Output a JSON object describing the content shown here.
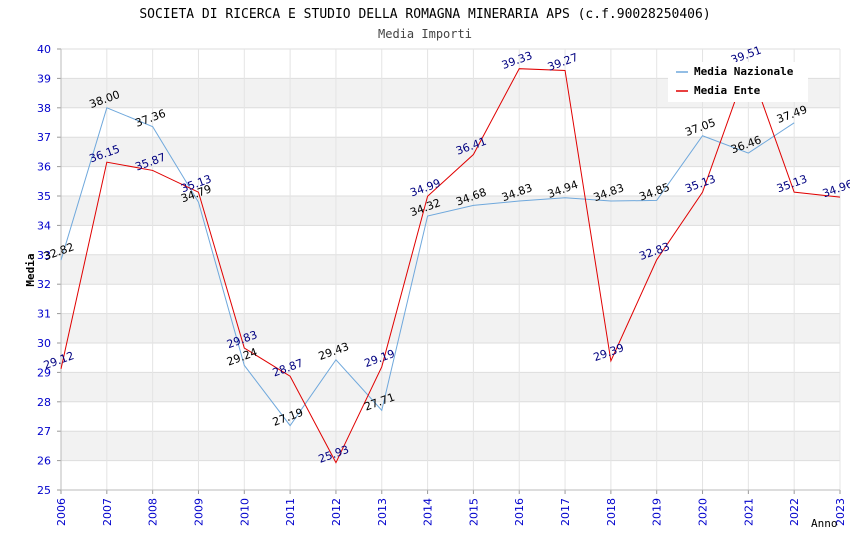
{
  "chart_data": {
    "type": "line",
    "title": "SOCIETA DI RICERCA E STUDIO DELLA ROMAGNA MINERARIA APS (c.f.90028250406)",
    "subtitle": "Media Importi",
    "xlabel": "Anno",
    "ylabel": "Media",
    "x": [
      2006,
      2007,
      2008,
      2009,
      2010,
      2011,
      2012,
      2013,
      2014,
      2015,
      2016,
      2017,
      2018,
      2019,
      2020,
      2021,
      2022,
      2023
    ],
    "x_ticks": [
      "2006",
      "2007",
      "2008",
      "2009",
      "2010",
      "2011",
      "2012",
      "2013",
      "2014",
      "2015",
      "2016",
      "2017",
      "2018",
      "2019",
      "2020",
      "2021",
      "2022",
      "2023"
    ],
    "y_ticks": [
      "25",
      "26",
      "27",
      "28",
      "29",
      "30",
      "31",
      "32",
      "33",
      "34",
      "35",
      "36",
      "37",
      "38",
      "39",
      "40"
    ],
    "ylim": [
      25,
      40
    ],
    "grid": true,
    "legend_position": "top-right",
    "series": [
      {
        "name": "Media Nazionale",
        "color": "#6fa8dc",
        "label_color": "#000000",
        "values": [
          32.82,
          38.0,
          37.36,
          34.79,
          29.24,
          27.19,
          29.43,
          27.71,
          34.32,
          34.68,
          34.83,
          34.94,
          34.83,
          34.85,
          37.05,
          36.46,
          37.49,
          null
        ],
        "labels": [
          "32.82",
          "38.00",
          "37.36",
          "34.79",
          "29.24",
          "27.19",
          "29.43",
          "27.71",
          "34.32",
          "34.68",
          "34.83",
          "34.94",
          "34.83",
          "34.85",
          "37.05",
          "36.46",
          "37.49",
          null
        ]
      },
      {
        "name": "Media Ente",
        "color": "#e00000",
        "label_color": "#000080",
        "values": [
          29.12,
          36.15,
          35.87,
          35.13,
          29.83,
          28.87,
          25.93,
          29.19,
          34.99,
          36.41,
          39.33,
          39.27,
          29.39,
          32.83,
          35.13,
          39.51,
          35.13,
          34.96
        ],
        "labels": [
          "29.12",
          "36.15",
          "35.87",
          "35.13",
          "29.83",
          "28.87",
          "25.93",
          "29.19",
          "34.99",
          "36.41",
          "39.33",
          "39.27",
          "29.39",
          "32.83",
          "35.13",
          "39.51",
          "35.13",
          "34.96"
        ]
      }
    ]
  }
}
